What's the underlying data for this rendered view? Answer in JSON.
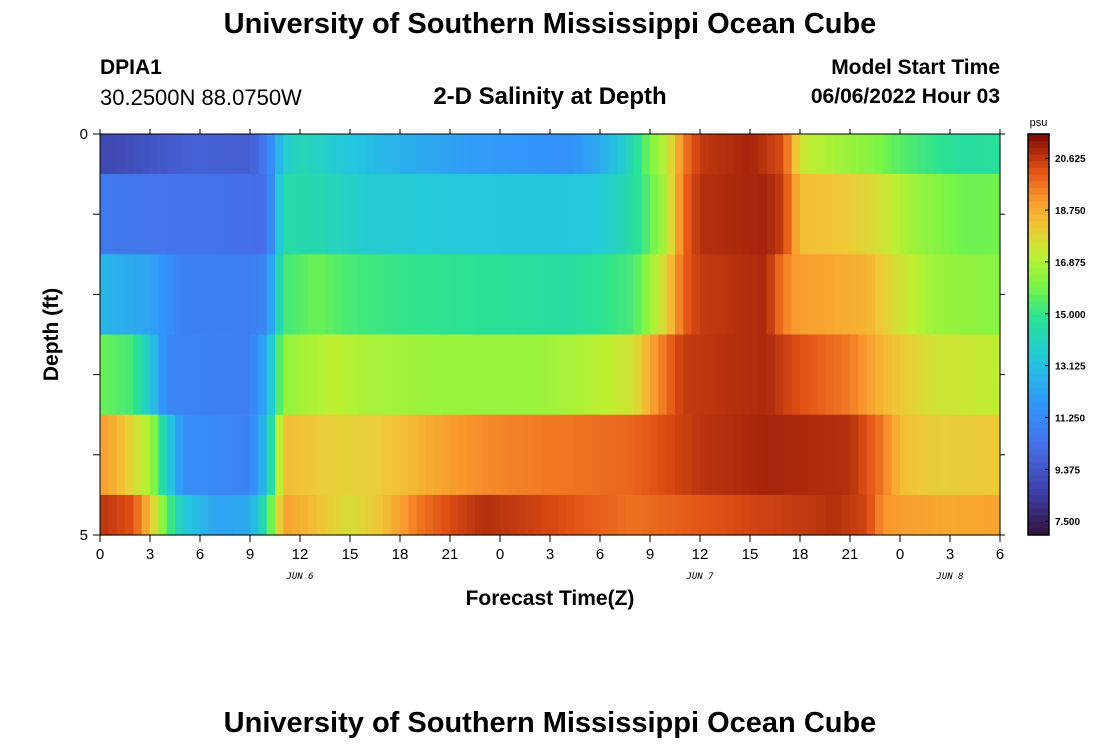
{
  "header": {
    "title": "University of Southern Mississippi Ocean Cube",
    "station_id": "DPIA1",
    "station_coords": "30.2500N  88.0750W",
    "plot_title": "2-D Salinity at Depth",
    "start_label": "Model Start Time",
    "start_value": "06/06/2022 Hour 03"
  },
  "footer": {
    "title": "University of Southern Mississippi Ocean Cube"
  },
  "chart_data": {
    "type": "heatmap",
    "title": "2-D Salinity at Depth",
    "xlabel": "Forecast Time(Z)",
    "ylabel": "Depth (ft)",
    "x_start": "06/06/2022 00Z",
    "x_step_hours": 1,
    "xlim_hours": [
      0,
      54
    ],
    "ylim": [
      0,
      5
    ],
    "y_reversed": true,
    "x_tick_labels": [
      "0",
      "3",
      "6",
      "9",
      "12",
      "15",
      "18",
      "21",
      "0",
      "3",
      "6",
      "9",
      "12",
      "15",
      "18",
      "21",
      "0",
      "3",
      "6"
    ],
    "y_tick_labels": [
      "0",
      "5"
    ],
    "date_labels": [
      {
        "text": "JUN 6",
        "hour": 12
      },
      {
        "text": "JUN 7",
        "hour": 36
      },
      {
        "text": "JUN 8",
        "hour": 51
      }
    ],
    "colorbar": {
      "unit": "psu",
      "range": [
        7,
        21.5
      ],
      "tick_labels": [
        "20.625",
        "18.750",
        "16.875",
        "15.000",
        "13.125",
        "11.250",
        "9.375",
        "7.500"
      ],
      "tick_values": [
        20.625,
        18.75,
        16.875,
        15.0,
        13.125,
        11.25,
        9.375,
        7.5
      ]
    },
    "rows": [
      {
        "depth_top": 0,
        "depth_bottom": 0.5,
        "keyframes": [
          [
            0,
            8.8
          ],
          [
            4,
            9.5
          ],
          [
            6,
            9.8
          ],
          [
            9,
            9.6
          ],
          [
            10,
            10.8
          ],
          [
            11,
            13.5
          ],
          [
            12,
            14.2
          ],
          [
            14,
            13.6
          ],
          [
            18,
            12.6
          ],
          [
            22,
            12.0
          ],
          [
            24,
            11.9
          ],
          [
            28,
            11.6
          ],
          [
            30,
            12.4
          ],
          [
            31,
            13.3
          ],
          [
            32,
            14.4
          ],
          [
            33,
            16.0
          ],
          [
            34,
            17.2
          ],
          [
            35,
            19.5
          ],
          [
            36,
            20.6
          ],
          [
            39,
            21.0
          ],
          [
            41,
            20.3
          ],
          [
            42,
            17.5
          ],
          [
            43,
            17.0
          ],
          [
            46,
            16.3
          ],
          [
            48,
            15.5
          ],
          [
            50,
            15.0
          ],
          [
            52,
            14.6
          ],
          [
            54,
            14.8
          ]
        ]
      },
      {
        "depth_top": 0.5,
        "depth_bottom": 1.5,
        "keyframes": [
          [
            0,
            10.6
          ],
          [
            4,
            10.5
          ],
          [
            8,
            10.3
          ],
          [
            10,
            10.2
          ],
          [
            11,
            14.5
          ],
          [
            13,
            14.3
          ],
          [
            16,
            13.6
          ],
          [
            22,
            13.4
          ],
          [
            28,
            13.3
          ],
          [
            30,
            13.5
          ],
          [
            31,
            14.0
          ],
          [
            32,
            14.6
          ],
          [
            33,
            15.6
          ],
          [
            34,
            17.0
          ],
          [
            35,
            19.8
          ],
          [
            36,
            20.8
          ],
          [
            40,
            21.0
          ],
          [
            41,
            20.5
          ],
          [
            42,
            18.4
          ],
          [
            45,
            18.1
          ],
          [
            47,
            17.5
          ],
          [
            49,
            16.5
          ],
          [
            52,
            15.8
          ],
          [
            54,
            15.9
          ]
        ]
      },
      {
        "depth_top": 1.5,
        "depth_bottom": 2.5,
        "keyframes": [
          [
            0,
            12.8
          ],
          [
            3,
            12.2
          ],
          [
            5,
            11.0
          ],
          [
            9,
            10.8
          ],
          [
            10,
            11.3
          ],
          [
            11,
            15.2
          ],
          [
            13,
            15.8
          ],
          [
            15,
            15.3
          ],
          [
            18,
            15.0
          ],
          [
            24,
            14.8
          ],
          [
            28,
            14.6
          ],
          [
            30,
            14.9
          ],
          [
            32,
            15.3
          ],
          [
            33,
            16.5
          ],
          [
            34,
            18.0
          ],
          [
            35,
            19.9
          ],
          [
            36,
            20.6
          ],
          [
            40,
            20.9
          ],
          [
            41,
            19.5
          ],
          [
            42,
            19.0
          ],
          [
            46,
            18.6
          ],
          [
            48,
            17.5
          ],
          [
            50,
            16.6
          ],
          [
            54,
            16.2
          ]
        ]
      },
      {
        "depth_top": 2.5,
        "depth_bottom": 3.5,
        "keyframes": [
          [
            0,
            15.8
          ],
          [
            2,
            15.2
          ],
          [
            3,
            13.5
          ],
          [
            4,
            11.2
          ],
          [
            9,
            10.8
          ],
          [
            10,
            12.5
          ],
          [
            11,
            16.4
          ],
          [
            14,
            17.2
          ],
          [
            16,
            16.8
          ],
          [
            19,
            16.6
          ],
          [
            22,
            16.5
          ],
          [
            26,
            16.5
          ],
          [
            29,
            16.9
          ],
          [
            32,
            17.5
          ],
          [
            33,
            18.8
          ],
          [
            34,
            19.8
          ],
          [
            35,
            20.6
          ],
          [
            40,
            20.9
          ],
          [
            42,
            20.2
          ],
          [
            45,
            19.6
          ],
          [
            47,
            18.5
          ],
          [
            50,
            17.5
          ],
          [
            54,
            17.2
          ]
        ]
      },
      {
        "depth_top": 3.5,
        "depth_bottom": 4.5,
        "keyframes": [
          [
            0,
            19.0
          ],
          [
            1,
            18.6
          ],
          [
            3,
            16.8
          ],
          [
            4,
            13.8
          ],
          [
            5,
            11.5
          ],
          [
            9,
            11.0
          ],
          [
            10,
            13.2
          ],
          [
            11,
            18.4
          ],
          [
            13,
            18.1
          ],
          [
            15,
            17.9
          ],
          [
            17,
            18.1
          ],
          [
            20,
            18.8
          ],
          [
            22,
            19.2
          ],
          [
            25,
            19.5
          ],
          [
            29,
            19.7
          ],
          [
            32,
            19.9
          ],
          [
            34,
            20.3
          ],
          [
            36,
            20.7
          ],
          [
            40,
            21.0
          ],
          [
            45,
            20.8
          ],
          [
            47,
            19.6
          ],
          [
            48,
            18.4
          ],
          [
            50,
            18.0
          ],
          [
            54,
            18.1
          ]
        ]
      },
      {
        "depth_top": 4.5,
        "depth_bottom": 5,
        "keyframes": [
          [
            0,
            20.7
          ],
          [
            2,
            20.2
          ],
          [
            3,
            18.4
          ],
          [
            4,
            15.6
          ],
          [
            5,
            13.5
          ],
          [
            7,
            12.2
          ],
          [
            9,
            12.4
          ],
          [
            10,
            14.8
          ],
          [
            11,
            19.0
          ],
          [
            13,
            18.3
          ],
          [
            15,
            17.6
          ],
          [
            17,
            18.3
          ],
          [
            19,
            19.6
          ],
          [
            21,
            20.3
          ],
          [
            23,
            20.8
          ],
          [
            25,
            20.6
          ],
          [
            28,
            20.2
          ],
          [
            32,
            19.7
          ],
          [
            35,
            20.0
          ],
          [
            39,
            20.4
          ],
          [
            42,
            20.6
          ],
          [
            44,
            20.8
          ],
          [
            46,
            20.4
          ],
          [
            47,
            19.2
          ],
          [
            48,
            19.0
          ],
          [
            51,
            18.8
          ],
          [
            54,
            18.9
          ]
        ]
      }
    ]
  }
}
